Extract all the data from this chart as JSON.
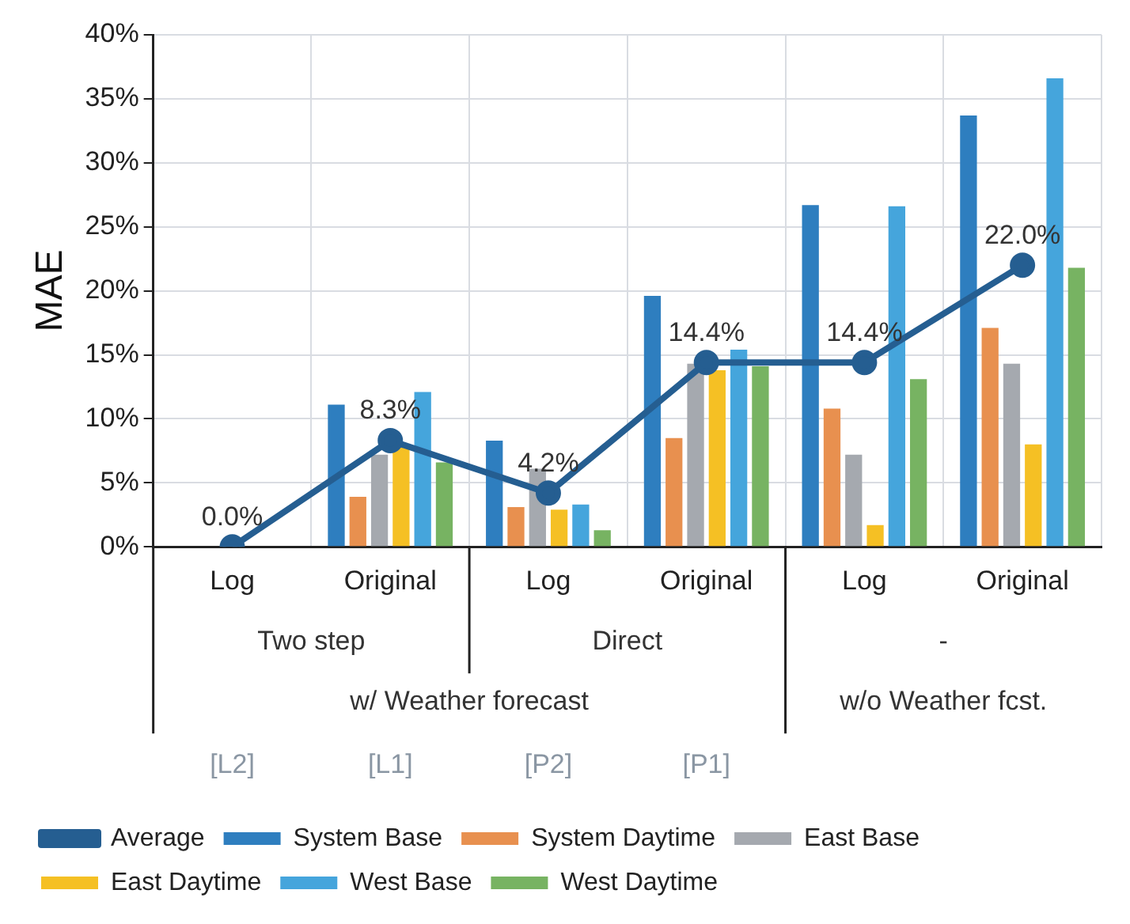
{
  "chart_data": {
    "type": "bar",
    "ylabel": "MAE",
    "categories": [
      "Log",
      "Original",
      "Log",
      "Original",
      "Log",
      "Original"
    ],
    "annotations": [
      "Two step",
      "Direct",
      "-",
      "w/ Weather forecast",
      "w/o Weather fcst.",
      "[L2]",
      "[L1]",
      "[P2]",
      "[P1]"
    ],
    "series": [
      {
        "name": "System Base",
        "color": "#2e7ebf",
        "values": [
          0,
          11.1,
          8.3,
          19.6,
          26.7,
          33.7
        ]
      },
      {
        "name": "System Daytime",
        "color": "#e8904f",
        "values": [
          0,
          3.9,
          3.1,
          8.5,
          10.8,
          17.1
        ]
      },
      {
        "name": "East Base",
        "color": "#a5a9af",
        "values": [
          0,
          7.2,
          6.1,
          14.3,
          7.2,
          14.3
        ]
      },
      {
        "name": "East Daytime",
        "color": "#f5c024",
        "values": [
          0,
          7.8,
          2.9,
          13.8,
          1.7,
          8.0
        ]
      },
      {
        "name": "West Base",
        "color": "#45a5dc",
        "values": [
          0,
          12.1,
          3.3,
          15.4,
          26.6,
          36.6
        ]
      },
      {
        "name": "West Daytime",
        "color": "#77b362",
        "values": [
          0,
          6.6,
          1.3,
          14.1,
          13.1,
          21.8
        ]
      },
      {
        "name": "Average",
        "type": "line",
        "color": "#255e91",
        "marker": "circle",
        "values": [
          0.0,
          8.3,
          4.2,
          14.4,
          14.4,
          22.0
        ],
        "value_labels": [
          "0.0%",
          "8.3%",
          "4.2%",
          "14.4%",
          "14.4%",
          "22.0%"
        ]
      }
    ],
    "ylim": [
      0,
      40
    ],
    "yticks": [
      {
        "value": 0,
        "label": "0%"
      },
      {
        "value": 5,
        "label": "5%"
      },
      {
        "value": 10,
        "label": "10%"
      },
      {
        "value": 15,
        "label": "15%"
      },
      {
        "value": 20,
        "label": "20%"
      },
      {
        "value": 25,
        "label": "25%"
      },
      {
        "value": 30,
        "label": "30%"
      },
      {
        "value": 35,
        "label": "35%"
      },
      {
        "value": 40,
        "label": "40%"
      }
    ],
    "grid": true,
    "legend": "bottom"
  }
}
